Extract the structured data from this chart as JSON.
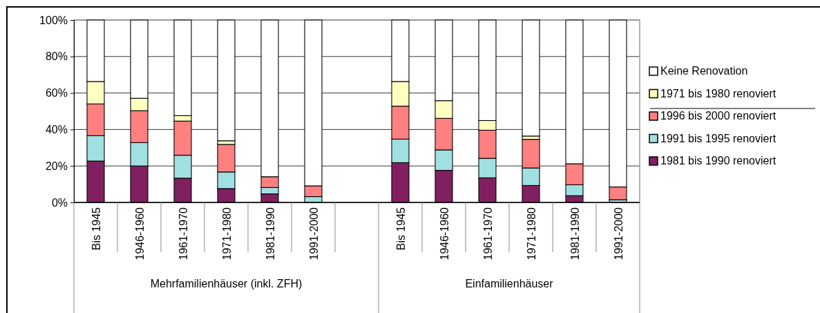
{
  "chart_data": {
    "type": "bar",
    "stacked": true,
    "categories": [
      "Bis 1945",
      "1946-1960",
      "1961-1970",
      "1971-1980",
      "1981-1990",
      "1991-2000",
      null,
      "Bis 1945",
      "1946-1960",
      "1961-1970",
      "1971-1980",
      "1981-1990",
      "1991-2000"
    ],
    "series": [
      {
        "name": "1981 bis 1990 renoviert",
        "color": "#802060",
        "values": [
          22.7,
          20.0,
          13.3,
          7.6,
          4.7,
          0,
          null,
          21.8,
          17.6,
          13.5,
          9.3,
          3.7,
          0
        ]
      },
      {
        "name": "1991 bis 1995 renoviert",
        "color": "#a0e0e0",
        "values": [
          13.9,
          12.8,
          12.6,
          9.1,
          3.5,
          3.2,
          null,
          12.9,
          11.2,
          10.7,
          9.6,
          6.0,
          1.5
        ]
      },
      {
        "name": "1996 bis 2000 renoviert",
        "color": "#ff8080",
        "values": [
          17.4,
          17.5,
          18.7,
          15.1,
          5.9,
          5.9,
          null,
          18.1,
          17.3,
          15.4,
          15.7,
          11.5,
          7.0
        ]
      },
      {
        "name": "1971 bis 1980 renoviert",
        "color": "#ffffc0",
        "values": [
          12.3,
          6.8,
          3.0,
          2.0,
          0,
          0,
          null,
          13.5,
          9.7,
          5.3,
          1.8,
          0,
          0
        ]
      },
      {
        "name": "Keine Renovation",
        "color": "#ffffff",
        "values": [
          33.7,
          42.9,
          52.4,
          66.2,
          85.9,
          90.9,
          null,
          33.7,
          44.2,
          55.1,
          63.6,
          78.8,
          91.5
        ]
      }
    ],
    "ylim": [
      0,
      100
    ],
    "yticks": [
      {
        "value": 0,
        "label": "0%"
      },
      {
        "value": 20,
        "label": "20%"
      },
      {
        "value": 40,
        "label": "40%"
      },
      {
        "value": 60,
        "label": "60%"
      },
      {
        "value": 80,
        "label": "80%"
      },
      {
        "value": 100,
        "label": "100%"
      }
    ],
    "grid": "y",
    "legend": "right",
    "annotations": [
      "Mehrfamilienhäuser (inkl. ZFH)",
      "Einfamilienhäuser"
    ]
  }
}
